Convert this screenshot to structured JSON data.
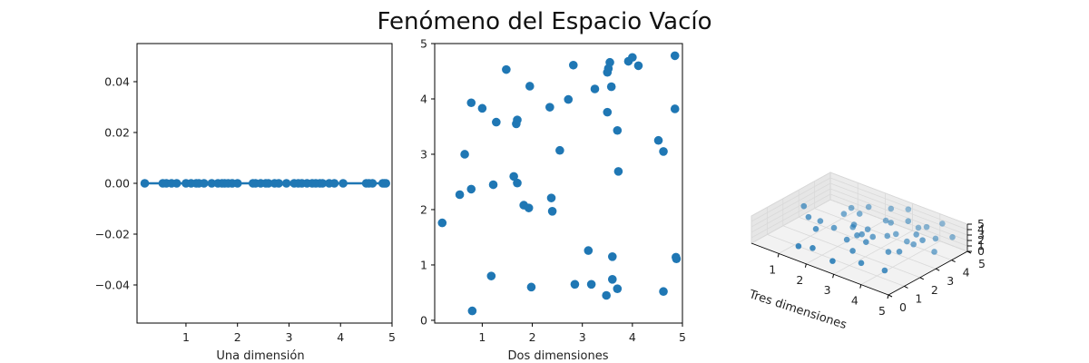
{
  "title": "Fenómeno del Espacio Vacío",
  "colors": {
    "point": "#1f77b4",
    "axis": "#000000",
    "pane": "#f2f2f2",
    "grid": "#d9d9d9"
  },
  "chart_data": [
    {
      "type": "line",
      "xlabel": "Una dimensión",
      "xlim": [
        0.05,
        5.0
      ],
      "ylim": [
        -0.055,
        0.055
      ],
      "xticks": [
        "1",
        "2",
        "3",
        "4",
        "5"
      ],
      "yticks": [
        "0.04",
        "0.02",
        "0.00",
        "−0.02",
        "−0.04"
      ],
      "x": [
        0.2,
        0.55,
        0.62,
        0.72,
        0.82,
        1.0,
        1.1,
        1.2,
        1.25,
        1.35,
        1.5,
        1.62,
        1.7,
        1.75,
        1.82,
        1.9,
        2.0,
        2.3,
        2.35,
        2.45,
        2.55,
        2.6,
        2.72,
        2.8,
        2.95,
        3.1,
        3.18,
        3.25,
        3.35,
        3.45,
        3.52,
        3.6,
        3.65,
        3.78,
        3.88,
        4.05,
        4.5,
        4.55,
        4.62,
        4.82,
        4.85,
        4.88
      ],
      "y": 0
    },
    {
      "type": "scatter",
      "xlabel": "Dos dimensiones",
      "xlim": [
        0.05,
        5.0
      ],
      "ylim": [
        -0.05,
        5.0
      ],
      "xticks": [
        "1",
        "2",
        "3",
        "4",
        "5"
      ],
      "yticks": [
        "0",
        "1",
        "2",
        "3",
        "4",
        "5"
      ],
      "points": [
        [
          0.2,
          1.76
        ],
        [
          0.55,
          2.27
        ],
        [
          0.65,
          3.0
        ],
        [
          0.78,
          3.93
        ],
        [
          0.78,
          2.37
        ],
        [
          0.8,
          0.17
        ],
        [
          1.0,
          3.83
        ],
        [
          1.18,
          0.8
        ],
        [
          1.22,
          2.45
        ],
        [
          1.28,
          3.58
        ],
        [
          1.48,
          4.53
        ],
        [
          1.63,
          2.6
        ],
        [
          1.68,
          3.55
        ],
        [
          1.7,
          3.62
        ],
        [
          1.7,
          2.48
        ],
        [
          1.83,
          2.08
        ],
        [
          1.93,
          2.03
        ],
        [
          1.95,
          4.23
        ],
        [
          1.98,
          0.6
        ],
        [
          2.35,
          3.85
        ],
        [
          2.38,
          2.21
        ],
        [
          2.4,
          1.97
        ],
        [
          2.55,
          3.07
        ],
        [
          2.72,
          3.99
        ],
        [
          2.82,
          4.61
        ],
        [
          2.85,
          0.65
        ],
        [
          3.12,
          1.26
        ],
        [
          3.18,
          0.65
        ],
        [
          3.25,
          4.18
        ],
        [
          3.48,
          0.45
        ],
        [
          3.5,
          4.48
        ],
        [
          3.52,
          4.55
        ],
        [
          3.5,
          3.76
        ],
        [
          3.55,
          4.66
        ],
        [
          3.58,
          4.22
        ],
        [
          3.6,
          1.15
        ],
        [
          3.6,
          0.74
        ],
        [
          3.7,
          3.43
        ],
        [
          3.7,
          0.57
        ],
        [
          3.72,
          2.69
        ],
        [
          3.92,
          4.68
        ],
        [
          4.0,
          4.75
        ],
        [
          4.12,
          4.6
        ],
        [
          4.52,
          3.25
        ],
        [
          4.62,
          3.05
        ],
        [
          4.62,
          0.52
        ],
        [
          4.85,
          4.78
        ],
        [
          4.85,
          3.82
        ],
        [
          4.87,
          1.14
        ],
        [
          4.88,
          1.11
        ]
      ]
    },
    {
      "type": "scatter",
      "xlabel": "Tres dimensiones",
      "xlim": [
        0.05,
        5.0
      ],
      "ylim": [
        0.05,
        5.0
      ],
      "zlim": [
        0,
        5.0
      ],
      "xticks": [
        "1",
        "2",
        "3",
        "4",
        "5"
      ],
      "yticks": [
        "0",
        "1",
        "2",
        "3",
        "4",
        "5"
      ],
      "zticks": [
        "0",
        "1",
        "2",
        "3",
        "4",
        "5"
      ],
      "points": [
        [
          0.3,
          2.8,
          2.9
        ],
        [
          0.7,
          2.4,
          2.3
        ],
        [
          0.9,
          2.8,
          1.3
        ],
        [
          1.4,
          2.8,
          1.0
        ],
        [
          1.8,
          3.3,
          1.1
        ],
        [
          1.6,
          1.1,
          0.4
        ],
        [
          1.2,
          0.9,
          0.3
        ],
        [
          2.1,
          2.4,
          0.8
        ],
        [
          2.6,
          1.9,
          0.5
        ],
        [
          3.2,
          1.4,
          0.2
        ],
        [
          2.5,
          0.8,
          0.2
        ],
        [
          4.0,
          1.5,
          0.2
        ],
        [
          3.5,
          2.6,
          0.9
        ],
        [
          2.3,
          3.0,
          1.2
        ],
        [
          1.9,
          3.2,
          1.9
        ],
        [
          2.4,
          3.2,
          2.0
        ],
        [
          2.7,
          3.0,
          1.5
        ],
        [
          1.3,
          3.6,
          2.1
        ],
        [
          1.7,
          3.9,
          2.4
        ],
        [
          3.0,
          3.4,
          1.6
        ],
        [
          3.2,
          3.6,
          2.0
        ],
        [
          3.6,
          3.6,
          1.4
        ],
        [
          3.9,
          3.5,
          1.6
        ],
        [
          4.6,
          3.6,
          1.4
        ],
        [
          4.3,
          4.2,
          2.3
        ],
        [
          2.6,
          4.0,
          2.7
        ],
        [
          2.9,
          3.8,
          3.2
        ],
        [
          4.0,
          3.5,
          3.6
        ],
        [
          4.4,
          3.2,
          3.8
        ],
        [
          3.8,
          4.5,
          3.0
        ],
        [
          4.8,
          4.4,
          3.2
        ],
        [
          3.3,
          4.2,
          3.6
        ],
        [
          2.5,
          4.5,
          3.9
        ],
        [
          4.2,
          4.8,
          3.9
        ],
        [
          1.8,
          4.3,
          3.2
        ],
        [
          1.4,
          3.9,
          2.9
        ],
        [
          2.3,
          2.7,
          1.5
        ],
        [
          2.8,
          2.4,
          1.7
        ],
        [
          1.2,
          2.0,
          1.7
        ],
        [
          3.9,
          2.6,
          1.7
        ],
        [
          3.5,
          4.5,
          2.3
        ],
        [
          2.9,
          4.9,
          3.9
        ]
      ]
    }
  ]
}
